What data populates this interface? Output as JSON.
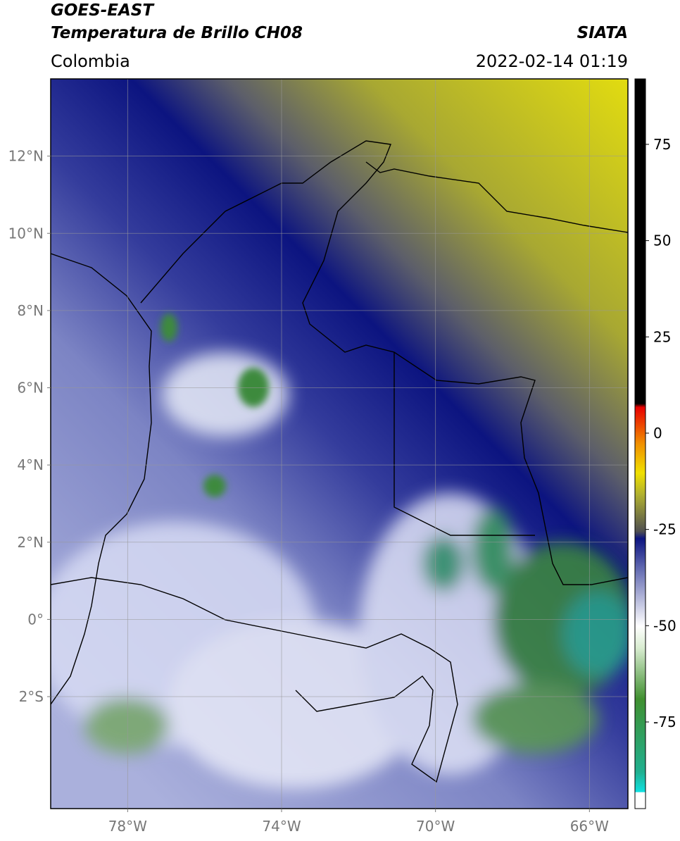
{
  "header": {
    "title": "GOES-EAST",
    "subtitle": "Temperatura de Brillo CH08",
    "region": "Colombia",
    "source": "SIATA",
    "timestamp": "2022-02-14 01:19"
  },
  "map": {
    "lon_range": [
      -80,
      -65
    ],
    "lat_range": [
      -4.9,
      14
    ],
    "lon_ticks": [
      {
        "value": -78,
        "label": "78°W"
      },
      {
        "value": -74,
        "label": "74°W"
      },
      {
        "value": -70,
        "label": "70°W"
      },
      {
        "value": -66,
        "label": "66°W"
      }
    ],
    "lat_ticks": [
      {
        "value": 12,
        "label": "12°N"
      },
      {
        "value": 10,
        "label": "10°N"
      },
      {
        "value": 8,
        "label": "8°N"
      },
      {
        "value": 6,
        "label": "6°N"
      },
      {
        "value": 4,
        "label": "4°N"
      },
      {
        "value": 2,
        "label": "2°N"
      },
      {
        "value": 0,
        "label": "0°"
      },
      {
        "value": -2,
        "label": "2°S"
      }
    ]
  },
  "colorbar": {
    "range": [
      -97.5,
      92
    ],
    "ticks": [
      75,
      50,
      25,
      0,
      -25,
      -50,
      -75
    ]
  }
}
